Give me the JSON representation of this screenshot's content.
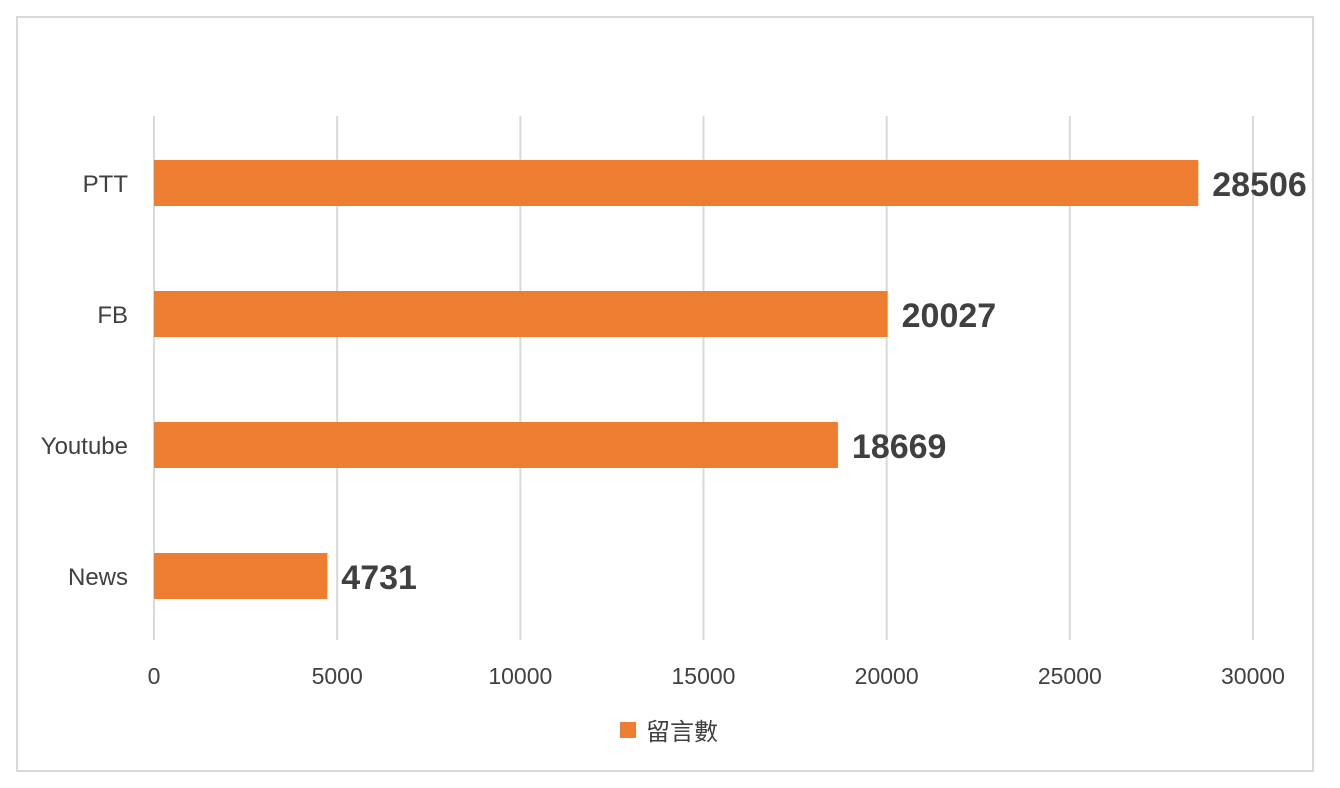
{
  "chart_data": {
    "type": "bar",
    "orientation": "horizontal",
    "categories": [
      "PTT",
      "FB",
      "Youtube",
      "News"
    ],
    "series": [
      {
        "name": "留言數",
        "values": [
          28506,
          20027,
          18669,
          4731
        ],
        "color": "#ED7D31"
      }
    ],
    "xlim": [
      0,
      30000
    ],
    "xticks": [
      0,
      5000,
      10000,
      15000,
      20000,
      25000,
      30000
    ],
    "grid": true,
    "legend": "bottom",
    "data_labels": true,
    "title": "",
    "xlabel": "",
    "ylabel": ""
  },
  "colors": {
    "bar": "#ED7D31",
    "grid": "#d9d9d9",
    "text": "#404040"
  }
}
